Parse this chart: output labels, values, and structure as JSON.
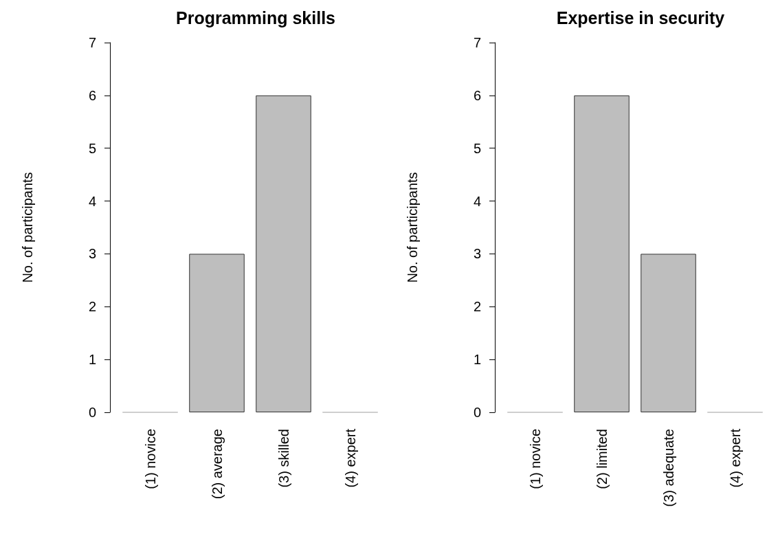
{
  "chart_data": [
    {
      "type": "bar",
      "title": "Programming skills",
      "ylabel": "No. of participants",
      "categories": [
        "(1) novice",
        "(2) average",
        "(3) skilled",
        "(4) expert"
      ],
      "values": [
        0,
        3,
        6,
        0
      ],
      "color": "#bebebe",
      "ylim": [
        0,
        7
      ],
      "yticks": [
        0,
        1,
        2,
        3,
        4,
        5,
        6,
        7
      ]
    },
    {
      "type": "bar",
      "title": "Expertise in security",
      "ylabel": "No. of participants",
      "categories": [
        "(1) novice",
        "(2) limited",
        "(3) adequate",
        "(4) expert"
      ],
      "values": [
        0,
        6,
        3,
        0
      ],
      "color": "#bebebe",
      "ylim": [
        0,
        7
      ],
      "yticks": [
        0,
        1,
        2,
        3,
        4,
        5,
        6,
        7
      ]
    }
  ]
}
